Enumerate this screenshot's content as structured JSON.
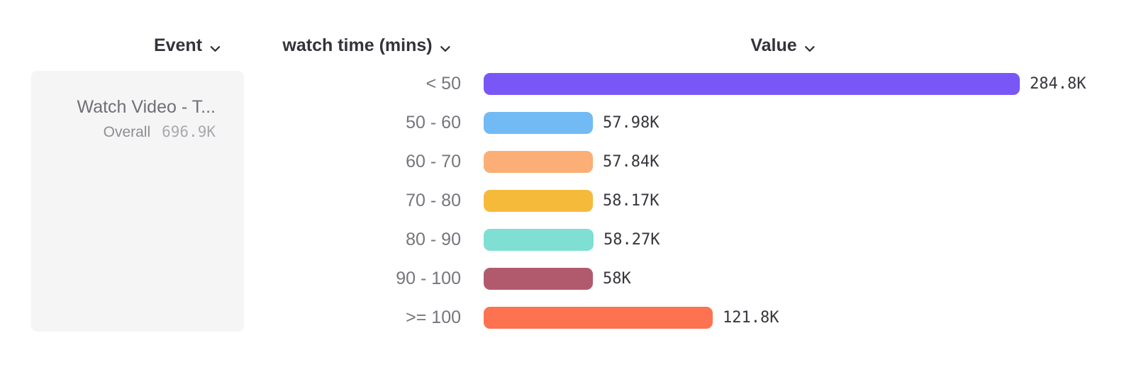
{
  "headers": {
    "event": "Event",
    "breakdown": "watch time (mins)",
    "value": "Value"
  },
  "event_card": {
    "title": "Watch Video - T...",
    "overall_label": "Overall",
    "overall_value": "696.9K"
  },
  "chart_data": {
    "type": "bar",
    "orientation": "horizontal",
    "title": "",
    "xlabel": "Value",
    "ylabel": "watch time (mins)",
    "categories": [
      "< 50",
      "50 - 60",
      "60 - 70",
      "70 - 80",
      "80 - 90",
      "90 - 100",
      ">= 100"
    ],
    "values": [
      284800,
      57980,
      57840,
      58170,
      58270,
      58000,
      121800
    ],
    "value_labels": [
      "284.8K",
      "57.98K",
      "57.84K",
      "58.17K",
      "58.27K",
      "58K",
      "121.8K"
    ],
    "colors": [
      "#7957f7",
      "#72baf4",
      "#fbae76",
      "#f6ba3b",
      "#7fdfd3",
      "#b25a6d",
      "#fd7251"
    ],
    "xlim": [
      0,
      284800
    ],
    "grid": false,
    "legend": false
  },
  "icons": {
    "chevron_color": "#33333b"
  }
}
